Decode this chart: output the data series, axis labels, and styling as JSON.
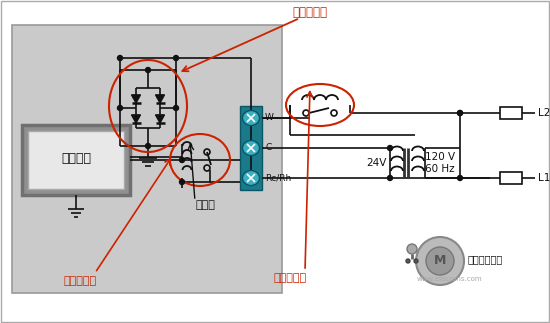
{
  "bg_white": "#ffffff",
  "bg_main": "#c8c8c8",
  "bg_inner": "#d8d8d8",
  "teal_dark": "#1a7a8a",
  "teal_mid": "#2a9aaa",
  "red": "#cc2200",
  "black": "#111111",
  "gray_box_outer": "#888888",
  "gray_box_inner": "#e8e8e8",
  "title_bridge": "桥式整流器",
  "label_signal": "信号继电器",
  "label_power": "功率继电器",
  "label_thermo": "恒温器",
  "label_sysctrl": "系统控制",
  "label_hvac": "暖通空调风尚",
  "label_rcrh": "Rc/Rh",
  "label_c": "C",
  "label_w": "W",
  "label_24v": "24V",
  "label_120v60": "120 V\n60 Hz",
  "label_L1": "L1",
  "label_L2": "L2",
  "website": "www.elecrans.com"
}
